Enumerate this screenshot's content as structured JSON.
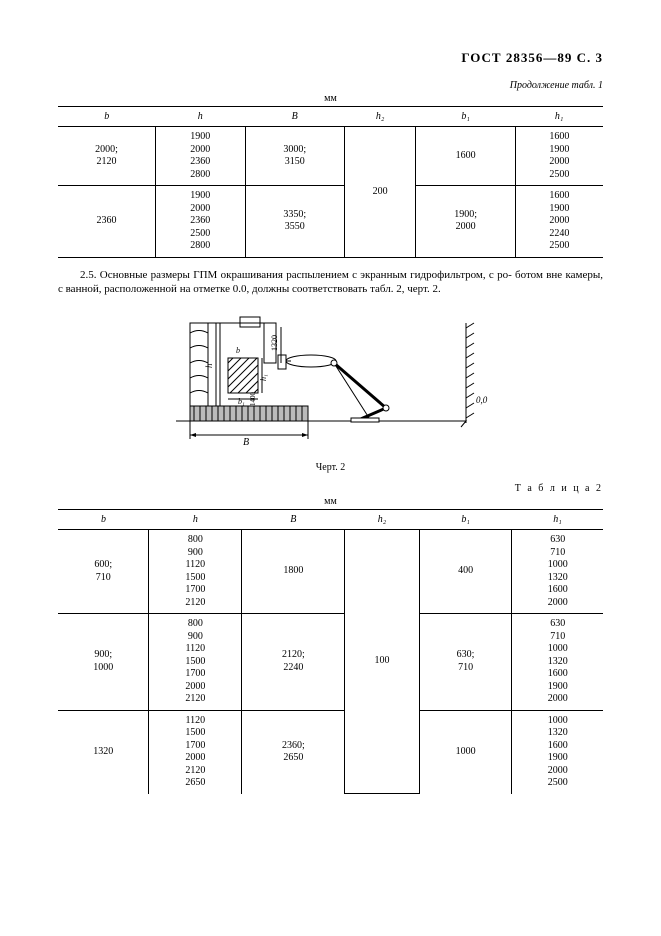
{
  "header": {
    "gost": "ГОСТ 28356—89   С.   3"
  },
  "continuation": "Продолжение табл. 1",
  "unit": "мм",
  "table1": {
    "columns": [
      "b",
      "h",
      "B",
      "h₂",
      "b₁",
      "h₁"
    ],
    "rows": [
      {
        "b": "2000;\n2120",
        "h": "1900\n2000\n2360\n2800",
        "B": "3000;\n3150",
        "h2_span": true,
        "b1": "1600",
        "h1": "1600\n1900\n2000\n2500"
      },
      {
        "b": "2360",
        "h": "1900\n2000\n2360\n2500\n2800",
        "B": "3350;\n3550",
        "h2": "200",
        "b1": "1900;\n2000",
        "h1": "1600\n1900\n2000\n2240\n2500"
      }
    ]
  },
  "paragraph": "2.5.  Основные размеры ГПМ окрашивания распылением с экранным гидрофильтром, с ро- ботом вне камеры, с ванной, расположенной на отметке 0.0, должны соответствовать табл. 2, черт. 2.",
  "figure": {
    "caption": "Черт. 2",
    "label_0": "0,0",
    "label_B": "B",
    "label_h": "h",
    "label_b": "b",
    "label_h1": "h₁",
    "label_b1": "b₁",
    "label_1320": "1320",
    "label_1400": "1400"
  },
  "table2_label": "Т а б л и ц а   2",
  "table2": {
    "columns": [
      "b",
      "h",
      "B",
      "h₂",
      "b₁",
      "h₁"
    ],
    "rows": [
      {
        "b": "600;\n710",
        "h": "800\n900\n1120\n1500\n1700\n2120",
        "B": "1800",
        "b1": "400",
        "h1": "630\n710\n1000\n1320\n1600\n2000",
        "h2_span": true
      },
      {
        "b": "900;\n1000",
        "h": "800\n900\n1120\n1500\n1700\n2000\n2120",
        "B": "2120;\n2240",
        "h2": "100",
        "b1": "630;\n710",
        "h1": "630\n710\n1000\n1320\n1600\n1900\n2000"
      },
      {
        "b": "1320",
        "h": "1120\n1500\n1700\n2000\n2120\n2650",
        "B": "2360;\n2650",
        "b1": "1000",
        "h1": "1000\n1320\n1600\n1900\n2000\n2500",
        "h2_span": true
      }
    ]
  },
  "styles": {
    "font_family": "Times New Roman",
    "body_fontsize_pt": 11,
    "table_fontsize_pt": 10,
    "border_color": "#000000",
    "background": "#ffffff"
  }
}
